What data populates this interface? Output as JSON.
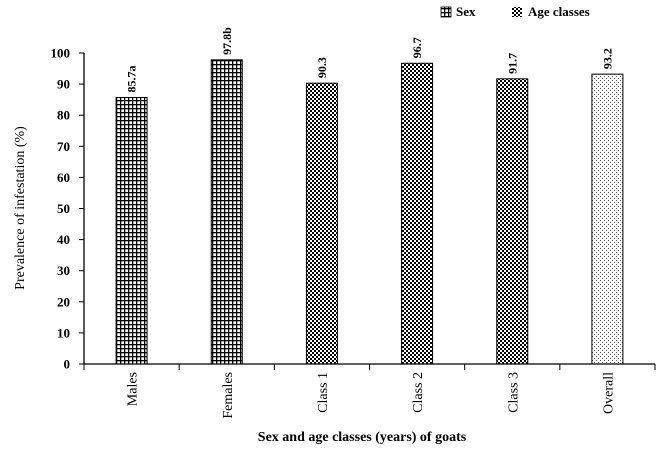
{
  "chart_data": {
    "type": "bar",
    "xlabel": "Sex and age classes (years) of goats",
    "ylabel": "Prevalence of infestation (%)",
    "ylim": [
      0,
      100
    ],
    "yticks": [
      0,
      10,
      20,
      30,
      40,
      50,
      60,
      70,
      80,
      90,
      100
    ],
    "categories": [
      "Males",
      "Females",
      "Class 1",
      "Class 2",
      "Class 3",
      "Overall"
    ],
    "values": [
      85.7,
      97.8,
      90.3,
      96.7,
      91.7,
      93.2
    ],
    "data_labels": [
      "85.7a",
      "97.8b",
      "90.3",
      "96.7",
      "91.7",
      "93.2"
    ],
    "bar_group": [
      "sex",
      "sex",
      "age",
      "age",
      "age",
      "overall"
    ],
    "legend": {
      "placement": "top-right",
      "entries": [
        {
          "key": "sex",
          "label": "Sex"
        },
        {
          "key": "age",
          "label": "Age classes"
        }
      ]
    },
    "grid": false
  }
}
